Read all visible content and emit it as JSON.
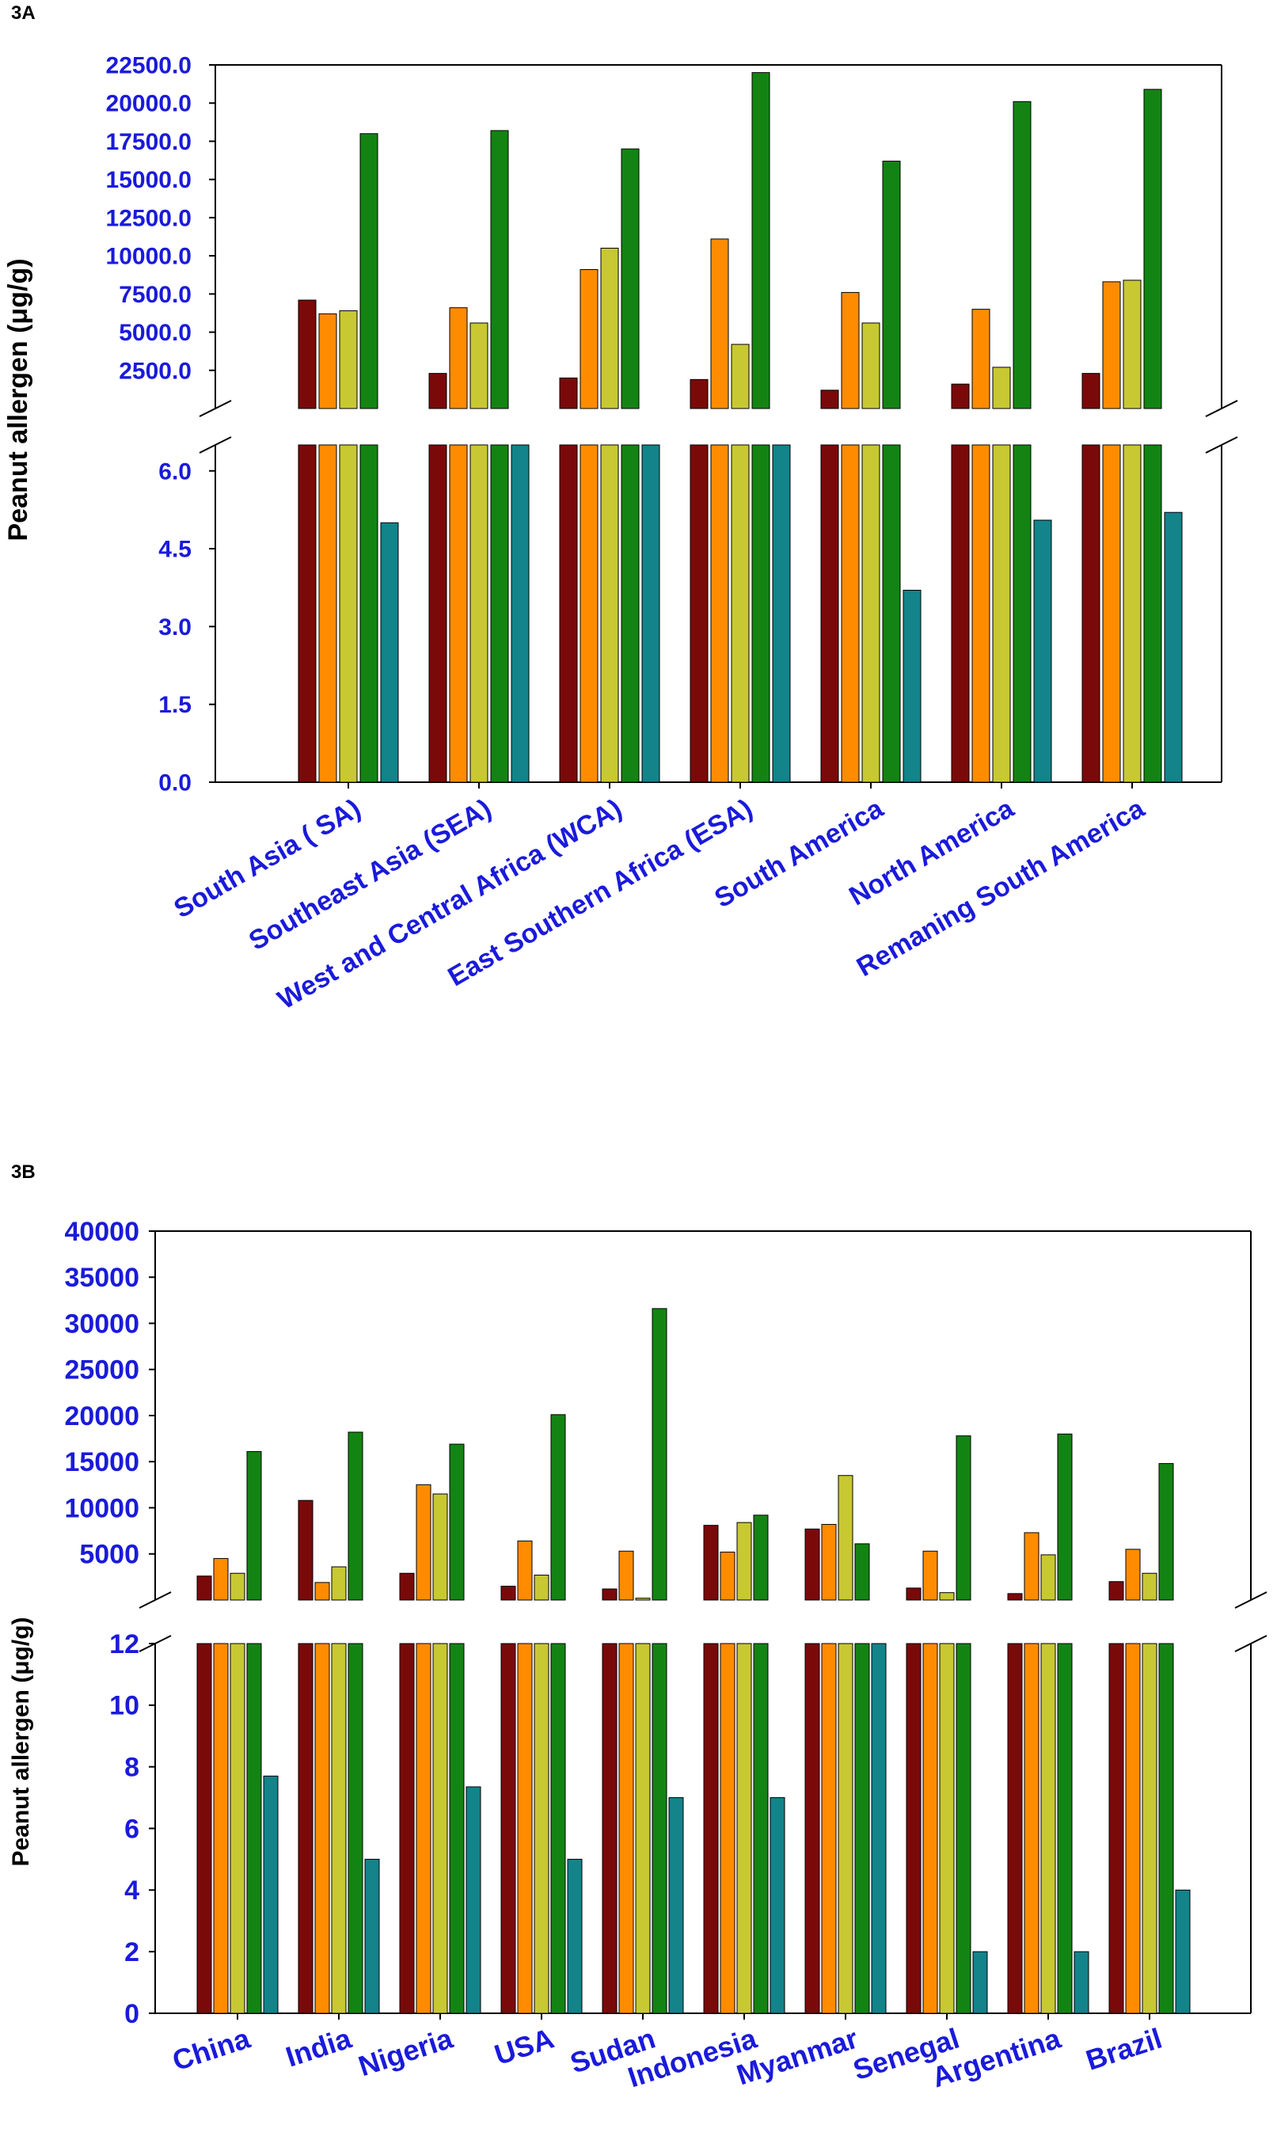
{
  "chart_data": [
    {
      "type": "bar",
      "panel_label": "3A",
      "broken_axis": true,
      "ylabel": "Peanut allergen (μg/g)",
      "categories": [
        "South Asia ( SA)",
        "Southeast Asia (SEA)",
        "West and Central Africa (WCA)",
        "East Southern Africa (ESA)",
        "South America",
        "North America",
        "Remaning South America"
      ],
      "colors": [
        "#7a0a0a",
        "#ff8c00",
        "#c8c832",
        "#138413",
        "#12848a"
      ],
      "upper": {
        "ylim": [
          0,
          22500
        ],
        "ticks": [
          "2500.0",
          "5000.0",
          "7500.0",
          "10000.0",
          "12500.0",
          "15000.0",
          "17500.0",
          "20000.0",
          "22500.0"
        ],
        "series": [
          {
            "name": "series 1",
            "values": [
              7100,
              2300,
              2000,
              1900,
              1200,
              1600,
              2300
            ]
          },
          {
            "name": "series 2",
            "values": [
              6200,
              6600,
              9100,
              11100,
              7600,
              6500,
              8300
            ]
          },
          {
            "name": "series 3",
            "values": [
              6400,
              5600,
              10500,
              4200,
              5600,
              2700,
              8400
            ]
          },
          {
            "name": "series 4",
            "values": [
              18000,
              18200,
              17000,
              22000,
              16200,
              20100,
              20900
            ]
          }
        ]
      },
      "lower": {
        "ylim": [
          0,
          6.5
        ],
        "ticks": [
          "0.0",
          "1.5",
          "3.0",
          "4.5",
          "6.0"
        ],
        "series": [
          {
            "name": "series 5",
            "values": [
              5.0,
              6.5,
              6.5,
              6.5,
              3.7,
              5.05,
              5.2
            ]
          }
        ]
      }
    },
    {
      "type": "bar",
      "panel_label": "3B",
      "broken_axis": true,
      "ylabel": "Peanut allergen (μg/g)",
      "categories": [
        "China",
        "India",
        "Nigeria",
        "USA",
        "Sudan",
        "Indonesia",
        "Myanmar",
        "Senegal",
        "Argentina",
        "Brazil"
      ],
      "colors": [
        "#7a0a0a",
        "#ff8c00",
        "#c8c832",
        "#138413",
        "#12848a"
      ],
      "upper": {
        "ylim": [
          0,
          40000
        ],
        "ticks": [
          "5000",
          "10000",
          "15000",
          "20000",
          "25000",
          "30000",
          "35000",
          "40000"
        ],
        "series": [
          {
            "name": "series 1",
            "values": [
              2600,
              10800,
              2900,
              1500,
              1200,
              8100,
              7700,
              1300,
              700,
              2000
            ]
          },
          {
            "name": "series 2",
            "values": [
              4500,
              1900,
              12500,
              6400,
              5300,
              5200,
              8200,
              5300,
              7300,
              5500
            ]
          },
          {
            "name": "series 3",
            "values": [
              2900,
              3600,
              11500,
              2700,
              200,
              8400,
              13500,
              800,
              4900,
              2900
            ]
          },
          {
            "name": "series 4",
            "values": [
              16100,
              18200,
              16900,
              20100,
              31600,
              9200,
              6100,
              17800,
              18000,
              14800
            ]
          }
        ]
      },
      "lower": {
        "ylim": [
          0,
          12
        ],
        "ticks": [
          "0",
          "2",
          "4",
          "6",
          "8",
          "10",
          "12"
        ],
        "series": [
          {
            "name": "series 5",
            "values": [
              7.7,
              5.0,
              7.35,
              5.0,
              7.0,
              7.0,
              12,
              2.0,
              2.0,
              4.0
            ]
          }
        ]
      }
    }
  ]
}
